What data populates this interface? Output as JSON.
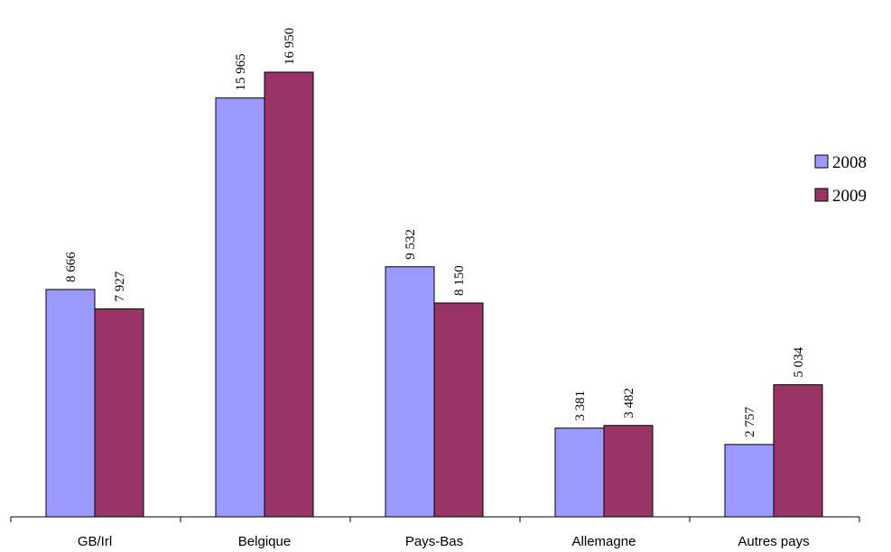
{
  "chart_data": {
    "type": "bar",
    "categories": [
      "GB/Irl",
      "Belgique",
      "Pays-Bas",
      "Allemagne",
      "Autres pays"
    ],
    "series": [
      {
        "name": "2008",
        "color": "#9999ff",
        "values": [
          8666,
          15965,
          9532,
          3381,
          2757
        ],
        "labels": [
          "8 666",
          "15 965",
          "9 532",
          "3 381",
          "2 757"
        ]
      },
      {
        "name": "2009",
        "color": "#993366",
        "values": [
          7927,
          16950,
          8150,
          3482,
          5034
        ],
        "labels": [
          "7 927",
          "16 950",
          "8 150",
          "3 482",
          "5 034"
        ]
      }
    ],
    "ylim": [
      0,
      18000
    ],
    "grid": false,
    "legend_position": "right",
    "data_labels": "vertical, above bars"
  }
}
